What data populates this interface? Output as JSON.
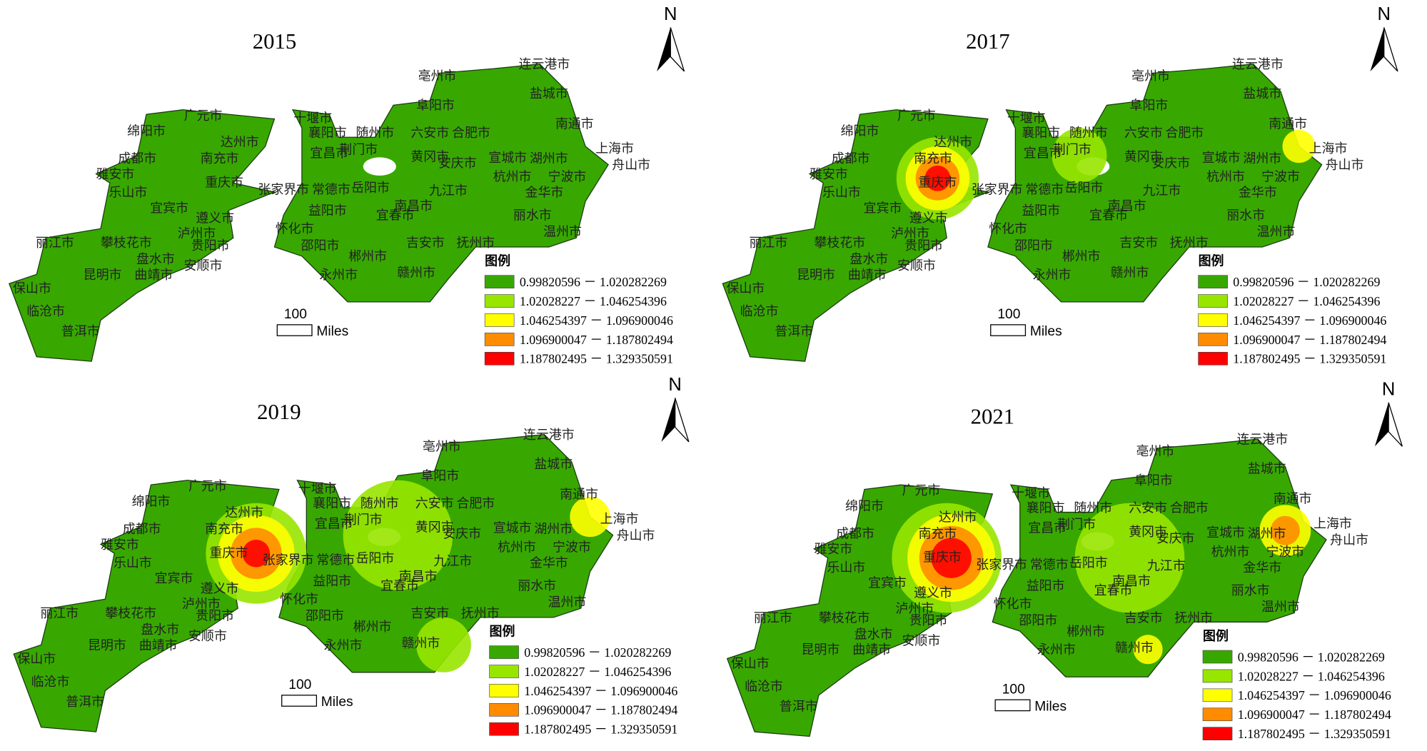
{
  "legend": {
    "title": "图例",
    "items": [
      {
        "label": "0.99820596 － 1.020282269",
        "color": "#38a800"
      },
      {
        "label": "1.02028227 － 1.046254396",
        "color": "#98e600"
      },
      {
        "label": "1.046254397 － 1.096900046",
        "color": "#ffff00"
      },
      {
        "label": "1.096900047 － 1.187802494",
        "color": "#ff8c00"
      },
      {
        "label": "1.187802495 － 1.329350591",
        "color": "#ff0000"
      }
    ]
  },
  "north": "N",
  "scale": {
    "value": "100",
    "unit": "Miles"
  },
  "panels": [
    {
      "title": "2015"
    },
    {
      "title": "2017"
    },
    {
      "title": "2019"
    },
    {
      "title": "2021"
    }
  ],
  "cities": [
    "连云港市",
    "亳州市",
    "阜阳市",
    "盐城市",
    "南通市",
    "上海市",
    "舟山市",
    "十堰市",
    "襄阳市",
    "随州市",
    "六安市",
    "合肥市",
    "广元市",
    "绵阳市",
    "达州市",
    "南充市",
    "成都市",
    "雅安市",
    "宜昌市",
    "荆门市",
    "黄冈市",
    "安庆市",
    "宣城市",
    "湖州市",
    "杭州市",
    "宁波市",
    "重庆市",
    "张家界市",
    "常德市",
    "乐山市",
    "岳阳市",
    "九江市",
    "宜宾市",
    "遵义市",
    "益阳市",
    "南昌市",
    "金华市",
    "丽水市",
    "温州市",
    "泸州市",
    "怀化市",
    "宜春市",
    "丽江市",
    "攀枝花市",
    "贵阳市",
    "邵阳市",
    "吉安市",
    "抚州市",
    "曲靖市",
    "昆明市",
    "盘水市",
    "安顺市",
    "郴州市",
    "永州市",
    "赣州市",
    "保山市",
    "临沧市",
    "普洱市"
  ]
}
